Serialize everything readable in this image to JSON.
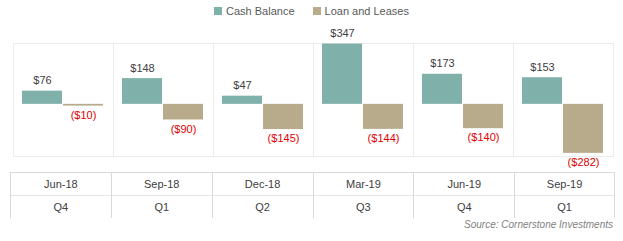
{
  "chart_data": {
    "type": "bar",
    "categories": [
      "Jun-18",
      "Sep-18",
      "Dec-18",
      "Mar-19",
      "Jun-19",
      "Sep-19"
    ],
    "sub_categories": [
      "Q4",
      "Q1",
      "Q2",
      "Q3",
      "Q4",
      "Q1"
    ],
    "series": [
      {
        "name": "Cash Balance",
        "color": "#7fb0aa",
        "values": [
          76,
          148,
          47,
          347,
          173,
          153
        ],
        "value_labels": [
          "$76",
          "$148",
          "$47",
          "$347",
          "$173",
          "$153"
        ]
      },
      {
        "name": "Loan and Leases",
        "color": "#b8ab8c",
        "values": [
          -10,
          -90,
          -145,
          -144,
          -140,
          -282
        ],
        "value_labels": [
          "($10)",
          "($90)",
          "($145)",
          "($144)",
          "($140)",
          "($282)"
        ]
      }
    ],
    "ylim": [
      -300,
      350
    ],
    "yticks": [],
    "grid": false,
    "legend": "top",
    "data_labels": true,
    "tick_labels": "x",
    "caption": "Source: Cornerstone Investments"
  }
}
